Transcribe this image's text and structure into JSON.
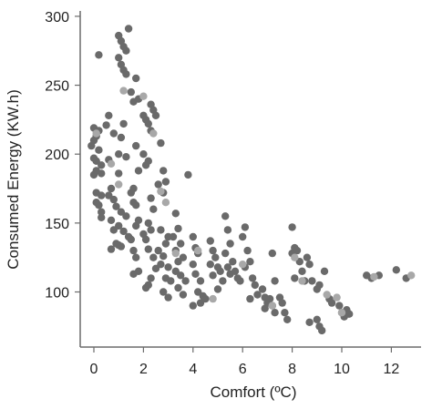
{
  "chart_data": {
    "type": "scatter",
    "xlabel": "Comfort (ºC)",
    "ylabel": "Consumed Energy (KW.h)",
    "xlim": [
      -0.6,
      13.3
    ],
    "ylim": [
      70,
      305
    ],
    "xticks": [
      0,
      2,
      4,
      6,
      8,
      10,
      12
    ],
    "yticks": [
      100,
      150,
      200,
      250,
      300
    ],
    "grid": false,
    "colors": {
      "dark": "#6a6a6a",
      "light": "#a8a8a8",
      "axis": "#6b6b6b"
    },
    "series": [
      {
        "shade": "dark",
        "points": [
          [
            0.2,
            272
          ],
          [
            0.0,
            219
          ],
          [
            0.2,
            217
          ],
          [
            0.1,
            213
          ],
          [
            0.0,
            210
          ],
          [
            -0.1,
            206
          ],
          [
            0.2,
            203
          ],
          [
            0.0,
            197
          ],
          [
            0.1,
            195
          ],
          [
            0.3,
            192
          ],
          [
            0.1,
            188
          ],
          [
            0.0,
            185
          ],
          [
            0.3,
            186
          ],
          [
            0.1,
            172
          ],
          [
            0.3,
            170
          ],
          [
            0.1,
            165
          ],
          [
            0.2,
            163
          ],
          [
            0.3,
            158
          ],
          [
            0.3,
            154
          ],
          [
            0.5,
            221
          ],
          [
            0.6,
            228
          ],
          [
            0.8,
            215
          ],
          [
            0.6,
            196
          ],
          [
            0.7,
            175
          ],
          [
            0.6,
            170
          ],
          [
            0.8,
            167
          ],
          [
            0.9,
            162
          ],
          [
            0.7,
            152
          ],
          [
            0.8,
            145
          ],
          [
            0.9,
            135
          ],
          [
            0.7,
            131
          ],
          [
            1.0,
            286
          ],
          [
            1.1,
            282
          ],
          [
            1.2,
            278
          ],
          [
            1.3,
            275
          ],
          [
            1.0,
            270
          ],
          [
            1.1,
            265
          ],
          [
            1.2,
            261
          ],
          [
            1.4,
            291
          ],
          [
            1.3,
            258
          ],
          [
            1.1,
            212
          ],
          [
            1.2,
            222
          ],
          [
            1.0,
            200
          ],
          [
            1.3,
            198
          ],
          [
            1.0,
            186
          ],
          [
            1.1,
            158
          ],
          [
            1.3,
            155
          ],
          [
            1.0,
            148
          ],
          [
            1.2,
            144
          ],
          [
            1.4,
            140
          ],
          [
            1.0,
            134
          ],
          [
            1.1,
            133
          ],
          [
            1.5,
            245
          ],
          [
            1.7,
            255
          ],
          [
            1.8,
            240
          ],
          [
            1.6,
            238
          ],
          [
            1.7,
            206
          ],
          [
            1.8,
            188
          ],
          [
            1.6,
            175
          ],
          [
            1.5,
            172
          ],
          [
            1.6,
            165
          ],
          [
            1.7,
            163
          ],
          [
            1.8,
            152
          ],
          [
            1.7,
            148
          ],
          [
            1.5,
            138
          ],
          [
            1.6,
            130
          ],
          [
            1.7,
            125
          ],
          [
            1.8,
            115
          ],
          [
            1.6,
            113
          ],
          [
            2.0,
            228
          ],
          [
            2.1,
            225
          ],
          [
            2.2,
            222
          ],
          [
            2.3,
            236
          ],
          [
            2.4,
            232
          ],
          [
            2.5,
            228
          ],
          [
            2.3,
            217
          ],
          [
            2.0,
            200
          ],
          [
            2.2,
            195
          ],
          [
            2.1,
            192
          ],
          [
            2.3,
            168
          ],
          [
            2.4,
            160
          ],
          [
            2.2,
            150
          ],
          [
            2.3,
            145
          ],
          [
            2.0,
            142
          ],
          [
            2.1,
            138
          ],
          [
            2.2,
            131
          ],
          [
            2.4,
            125
          ],
          [
            2.5,
            117
          ],
          [
            2.3,
            110
          ],
          [
            2.2,
            105
          ],
          [
            2.1,
            103
          ],
          [
            2.7,
            208
          ],
          [
            2.8,
            188
          ],
          [
            2.9,
            180
          ],
          [
            2.6,
            178
          ],
          [
            2.8,
            172
          ],
          [
            2.7,
            145
          ],
          [
            3.0,
            140
          ],
          [
            2.9,
            135
          ],
          [
            2.6,
            130
          ],
          [
            2.8,
            126
          ],
          [
            2.7,
            120
          ],
          [
            3.0,
            118
          ],
          [
            2.9,
            110
          ],
          [
            3.1,
            108
          ],
          [
            2.8,
            100
          ],
          [
            3.0,
            96
          ],
          [
            3.3,
            157
          ],
          [
            3.4,
            146
          ],
          [
            3.2,
            140
          ],
          [
            3.5,
            135
          ],
          [
            3.3,
            130
          ],
          [
            3.6,
            125
          ],
          [
            3.4,
            122
          ],
          [
            3.3,
            115
          ],
          [
            3.5,
            112
          ],
          [
            3.7,
            108
          ],
          [
            3.4,
            103
          ],
          [
            3.6,
            98
          ],
          [
            3.8,
            185
          ],
          [
            4.0,
            140
          ],
          [
            4.1,
            132
          ],
          [
            4.2,
            128
          ],
          [
            4.0,
            120
          ],
          [
            4.1,
            113
          ],
          [
            4.3,
            108
          ],
          [
            4.2,
            100
          ],
          [
            4.4,
            97
          ],
          [
            4.0,
            90
          ],
          [
            4.3,
            92
          ],
          [
            4.5,
            95
          ],
          [
            4.7,
            137
          ],
          [
            4.8,
            130
          ],
          [
            4.9,
            125
          ],
          [
            4.7,
            120
          ],
          [
            5.0,
            118
          ],
          [
            5.1,
            115
          ],
          [
            4.8,
            112
          ],
          [
            5.2,
            108
          ],
          [
            5.0,
            102
          ],
          [
            5.3,
            155
          ],
          [
            5.4,
            145
          ],
          [
            5.5,
            135
          ],
          [
            5.3,
            128
          ],
          [
            5.6,
            122
          ],
          [
            5.4,
            118
          ],
          [
            5.7,
            115
          ],
          [
            5.5,
            113
          ],
          [
            5.8,
            110
          ],
          [
            5.9,
            108
          ],
          [
            6.0,
            140
          ],
          [
            6.1,
            147
          ],
          [
            6.2,
            130
          ],
          [
            6.3,
            122
          ],
          [
            6.1,
            118
          ],
          [
            6.4,
            110
          ],
          [
            6.5,
            105
          ],
          [
            6.6,
            98
          ],
          [
            6.3,
            95
          ],
          [
            6.8,
            102
          ],
          [
            6.9,
            96
          ],
          [
            7.0,
            92
          ],
          [
            7.1,
            95
          ],
          [
            6.9,
            88
          ],
          [
            7.2,
            90
          ],
          [
            7.3,
            85
          ],
          [
            7.2,
            128
          ],
          [
            7.3,
            108
          ],
          [
            7.5,
            96
          ],
          [
            7.6,
            92
          ],
          [
            7.7,
            85
          ],
          [
            7.8,
            80
          ],
          [
            8.0,
            147
          ],
          [
            8.1,
            132
          ],
          [
            8.2,
            130
          ],
          [
            8.0,
            128
          ],
          [
            8.3,
            122
          ],
          [
            8.1,
            110
          ],
          [
            8.4,
            115
          ],
          [
            8.5,
            108
          ],
          [
            8.6,
            125
          ],
          [
            8.7,
            120
          ],
          [
            8.8,
            108
          ],
          [
            9.0,
            102
          ],
          [
            9.1,
            105
          ],
          [
            8.7,
            78
          ],
          [
            9.0,
            80
          ],
          [
            9.1,
            75
          ],
          [
            9.2,
            72
          ],
          [
            9.3,
            115
          ],
          [
            9.5,
            95
          ],
          [
            9.6,
            92
          ],
          [
            9.9,
            90
          ],
          [
            10.0,
            85
          ],
          [
            10.1,
            82
          ],
          [
            10.2,
            87
          ],
          [
            10.3,
            84
          ],
          [
            11.0,
            112
          ],
          [
            11.2,
            110
          ],
          [
            11.5,
            112
          ],
          [
            12.6,
            110
          ],
          [
            12.2,
            116
          ]
        ]
      },
      {
        "shade": "light",
        "points": [
          [
            0.1,
            215
          ],
          [
            0.7,
            193
          ],
          [
            1.0,
            178
          ],
          [
            1.2,
            246
          ],
          [
            2.0,
            242
          ],
          [
            2.4,
            215
          ],
          [
            2.7,
            173
          ],
          [
            2.9,
            165
          ],
          [
            3.3,
            128
          ],
          [
            4.2,
            130
          ],
          [
            4.8,
            95
          ],
          [
            6.0,
            120
          ],
          [
            7.2,
            90
          ],
          [
            8.1,
            125
          ],
          [
            8.4,
            108
          ],
          [
            9.4,
            98
          ],
          [
            9.8,
            96
          ],
          [
            10.0,
            85
          ],
          [
            12.8,
            112
          ],
          [
            11.3,
            111
          ]
        ]
      }
    ]
  }
}
